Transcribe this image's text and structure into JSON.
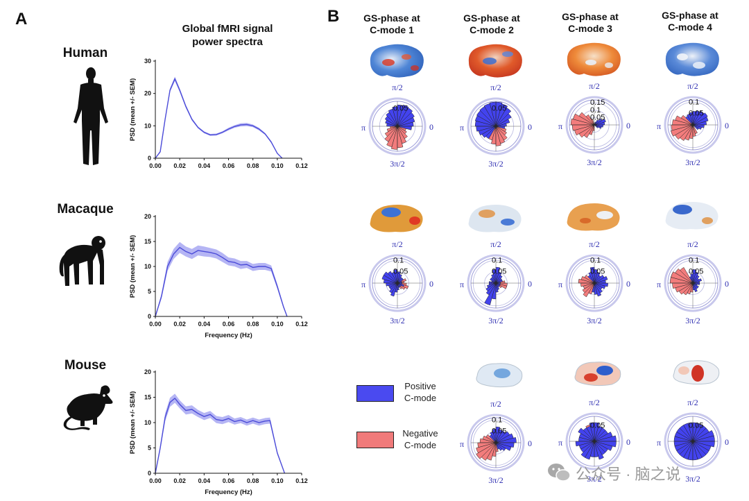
{
  "panel_a": {
    "letter": "A",
    "title": "Global fMRI  signal\npower spectra",
    "title_line1": "Global fMRI  signal",
    "title_line2": "power spectra",
    "species": [
      "Human",
      "Macaque",
      "Mouse"
    ]
  },
  "panel_b": {
    "letter": "B",
    "columns": [
      {
        "line1": "GS-phase at",
        "line2": "C-mode 1"
      },
      {
        "line1": "GS-phase at",
        "line2": "C-mode 2"
      },
      {
        "line1": "GS-phase at",
        "line2": "C-mode 3"
      },
      {
        "line1": "GS-phase at",
        "line2": "C-mode 4"
      }
    ],
    "angle_labels": {
      "top": "π/2",
      "left": "π",
      "right": "0",
      "bottom": "3π/2"
    },
    "legend": {
      "positive_line1": "Positive",
      "positive_line2": "C-mode",
      "negative_line1": "Negative",
      "negative_line2": "C-mode",
      "positive_color": "#4a4af0",
      "negative_color": "#f07a7a"
    }
  },
  "colors": {
    "line": "#4b4bd8",
    "band": "#9c9cf0",
    "pos": "#4343ee",
    "neg": "#f27c7c"
  },
  "chart_data": [
    {
      "type": "line",
      "name": "Human",
      "title": "Global fMRI  signal power spectra",
      "xlabel": "",
      "ylabel": "PSD (mean +/- SEM)",
      "xlim": [
        0,
        0.12
      ],
      "ylim": [
        0,
        30
      ],
      "xticks": [
        0,
        0.02,
        0.04,
        0.06,
        0.08,
        0.1,
        0.12
      ],
      "yticks": [
        0,
        10,
        20,
        30
      ],
      "x": [
        0,
        0.004,
        0.008,
        0.012,
        0.016,
        0.02,
        0.025,
        0.03,
        0.035,
        0.04,
        0.045,
        0.05,
        0.055,
        0.06,
        0.065,
        0.07,
        0.075,
        0.08,
        0.085,
        0.09,
        0.095,
        0.1,
        0.104
      ],
      "y": [
        0,
        2,
        12,
        21,
        24.5,
        21,
        16,
        12,
        9.5,
        8,
        7.2,
        7.3,
        8,
        9,
        9.8,
        10.3,
        10.4,
        10,
        9,
        7.5,
        5,
        1.5,
        0
      ],
      "sem": [
        0.2,
        0.3,
        0.5,
        0.6,
        0.7,
        0.6,
        0.5,
        0.4,
        0.3,
        0.3,
        0.3,
        0.3,
        0.3,
        0.4,
        0.4,
        0.5,
        0.5,
        0.4,
        0.4,
        0.3,
        0.3,
        0.2,
        0.1
      ]
    },
    {
      "type": "line",
      "name": "Macaque",
      "xlabel": "Frequency (Hz)",
      "ylabel": "PSD (mean +/- SEM)",
      "xlim": [
        0,
        0.12
      ],
      "ylim": [
        0,
        20
      ],
      "xticks": [
        0,
        0.02,
        0.04,
        0.06,
        0.08,
        0.1,
        0.12
      ],
      "yticks": [
        0,
        5,
        10,
        15,
        20
      ],
      "x": [
        0,
        0.005,
        0.01,
        0.015,
        0.02,
        0.025,
        0.03,
        0.035,
        0.04,
        0.045,
        0.05,
        0.055,
        0.06,
        0.065,
        0.07,
        0.075,
        0.08,
        0.085,
        0.09,
        0.095,
        0.1,
        0.105,
        0.108
      ],
      "y": [
        0,
        4,
        10,
        12.5,
        13.8,
        13,
        12.5,
        13.2,
        13,
        12.8,
        12.5,
        11.8,
        11,
        10.8,
        10.3,
        10.4,
        9.8,
        10,
        10,
        9.6,
        6,
        2,
        0
      ],
      "sem": [
        0.2,
        0.5,
        0.9,
        1.0,
        1.1,
        1.0,
        1.0,
        1.0,
        1.0,
        0.9,
        0.9,
        0.9,
        0.8,
        0.8,
        0.8,
        0.7,
        0.7,
        0.7,
        0.7,
        0.6,
        0.5,
        0.3,
        0.1
      ]
    },
    {
      "type": "line",
      "name": "Mouse",
      "xlabel": "Frequency (Hz)",
      "ylabel": "PSD (mean +/- SEM)",
      "xlim": [
        0,
        0.12
      ],
      "ylim": [
        0,
        20
      ],
      "xticks": [
        0,
        0.02,
        0.04,
        0.06,
        0.08,
        0.1,
        0.12
      ],
      "yticks": [
        0,
        5,
        10,
        15,
        20
      ],
      "x": [
        0,
        0.004,
        0.008,
        0.012,
        0.016,
        0.02,
        0.025,
        0.03,
        0.035,
        0.04,
        0.045,
        0.05,
        0.055,
        0.06,
        0.065,
        0.07,
        0.075,
        0.08,
        0.085,
        0.09,
        0.094,
        0.1,
        0.106
      ],
      "y": [
        0,
        5,
        11,
        14,
        14.8,
        13.6,
        12.4,
        12.6,
        11.8,
        11.2,
        11.6,
        10.6,
        10.4,
        10.8,
        10.2,
        10.5,
        10.0,
        10.4,
        10.0,
        10.3,
        10.4,
        4,
        0
      ],
      "sem": [
        0.2,
        0.5,
        0.8,
        0.9,
        0.9,
        0.8,
        0.8,
        0.8,
        0.7,
        0.7,
        0.7,
        0.7,
        0.7,
        0.7,
        0.6,
        0.6,
        0.6,
        0.6,
        0.6,
        0.6,
        0.6,
        0.3,
        0.1
      ]
    }
  ],
  "rose_plots": [
    {
      "id": "h1",
      "species": "Human",
      "col": 1,
      "rmax": 0.07,
      "rings": [
        0.05
      ],
      "ring_labels": [
        "0.05"
      ],
      "pos": [
        0.045,
        0.05,
        0.055,
        0.06,
        0.062,
        0.06,
        0.055,
        0.05,
        0.045,
        0.04,
        0.035,
        0.03,
        0,
        0,
        0,
        0,
        0,
        0,
        0,
        0,
        0,
        0,
        0,
        0.04
      ],
      "neg": [
        0,
        0,
        0,
        0,
        0,
        0,
        0,
        0,
        0,
        0,
        0,
        0,
        0.02,
        0.03,
        0.04,
        0.05,
        0.06,
        0.065,
        0.06,
        0.05,
        0.04,
        0.03,
        0.025,
        0
      ]
    },
    {
      "id": "h2",
      "species": "Human",
      "col": 2,
      "rmax": 0.07,
      "rings": [
        0.05
      ],
      "ring_labels": [
        "0.05"
      ],
      "pos": [
        0.03,
        0.04,
        0.05,
        0.06,
        0.065,
        0.068,
        0.068,
        0.066,
        0.064,
        0.062,
        0.06,
        0.058,
        0.055,
        0.05,
        0.045,
        0.04,
        0,
        0,
        0,
        0,
        0,
        0,
        0,
        0.025
      ],
      "neg": [
        0,
        0,
        0,
        0,
        0,
        0,
        0,
        0,
        0,
        0,
        0,
        0,
        0,
        0,
        0,
        0,
        0.04,
        0.05,
        0.055,
        0.05,
        0.045,
        0.035,
        0.03,
        0
      ]
    },
    {
      "id": "h3",
      "species": "Human",
      "col": 3,
      "rmax": 0.17,
      "rings": [
        0.05,
        0.1,
        0.15
      ],
      "ring_labels": [
        "0.05",
        "0.1",
        "0.15"
      ],
      "pos": [
        0.07,
        0.08,
        0.06,
        0.04,
        0.02,
        0,
        0,
        0,
        0,
        0,
        0,
        0,
        0,
        0,
        0,
        0,
        0,
        0,
        0,
        0,
        0,
        0.03,
        0.05,
        0.06
      ],
      "neg": [
        0,
        0,
        0,
        0,
        0,
        0,
        0,
        0.04,
        0.08,
        0.12,
        0.15,
        0.16,
        0.15,
        0.14,
        0.12,
        0.1,
        0.07,
        0.04,
        0,
        0,
        0,
        0,
        0,
        0
      ]
    },
    {
      "id": "h4",
      "species": "Human",
      "col": 4,
      "rmax": 0.11,
      "rings": [
        0.05,
        0.1
      ],
      "ring_labels": [
        "0.05",
        "0.1"
      ],
      "pos": [
        0.06,
        0.07,
        0.075,
        0.07,
        0.065,
        0.06,
        0.055,
        0.05,
        0.045,
        0,
        0,
        0,
        0,
        0,
        0,
        0,
        0,
        0,
        0,
        0,
        0,
        0.03,
        0.04,
        0.05
      ],
      "neg": [
        0,
        0,
        0,
        0,
        0,
        0,
        0,
        0,
        0,
        0.06,
        0.08,
        0.09,
        0.095,
        0.1,
        0.09,
        0.08,
        0.07,
        0.06,
        0.05,
        0.04,
        0,
        0,
        0,
        0
      ]
    },
    {
      "id": "m1",
      "species": "Macaque",
      "col": 1,
      "rmax": 0.11,
      "rings": [
        0.05,
        0.1
      ],
      "ring_labels": [
        "0.05",
        "0.1"
      ],
      "pos": [
        0.02,
        0.02,
        0.03,
        0.03,
        0.04,
        0.05,
        0.06,
        0.05,
        0.06,
        0.07,
        0.07,
        0.06,
        0.05,
        0.04,
        0.04,
        0.05,
        0.06,
        0.04,
        0.03,
        0.02,
        0.02,
        0.02,
        0.03,
        0.02
      ],
      "neg": [
        0.03,
        0.04,
        0.03,
        0.02,
        0,
        0,
        0,
        0,
        0,
        0,
        0,
        0,
        0,
        0,
        0,
        0,
        0,
        0,
        0,
        0.02,
        0.03,
        0.04,
        0.05,
        0.04
      ]
    },
    {
      "id": "m2",
      "species": "Macaque",
      "col": 2,
      "rmax": 0.11,
      "rings": [
        0.05,
        0.1
      ],
      "ring_labels": [
        "0.05",
        "0.1"
      ],
      "pos": [
        0.02,
        0.03,
        0.03,
        0.04,
        0.05,
        0.07,
        0.06,
        0.04,
        0.03,
        0.03,
        0.02,
        0.03,
        0.03,
        0.04,
        0.05,
        0.06,
        0.1,
        0.07,
        0.04,
        0.03,
        0.02,
        0.02,
        0.02,
        0.02
      ],
      "neg": [
        0.04,
        0.03,
        0.02,
        0,
        0,
        0,
        0,
        0,
        0,
        0,
        0,
        0,
        0,
        0,
        0,
        0,
        0,
        0,
        0,
        0,
        0.02,
        0.03,
        0.05,
        0.05
      ]
    },
    {
      "id": "m3",
      "species": "Macaque",
      "col": 3,
      "rmax": 0.11,
      "rings": [
        0.05,
        0.1
      ],
      "ring_labels": [
        "0.05",
        "0.1"
      ],
      "pos": [
        0.05,
        0.06,
        0.05,
        0.04,
        0.05,
        0.06,
        0.07,
        0.05,
        0.04,
        0,
        0,
        0,
        0,
        0,
        0,
        0,
        0,
        0.04,
        0.05,
        0.06,
        0.05,
        0.04,
        0.05,
        0.06
      ],
      "neg": [
        0,
        0,
        0,
        0,
        0,
        0,
        0,
        0,
        0,
        0.05,
        0.06,
        0.07,
        0.06,
        0.05,
        0.06,
        0.07,
        0.05,
        0,
        0,
        0,
        0,
        0,
        0,
        0
      ]
    },
    {
      "id": "m4",
      "species": "Macaque",
      "col": 4,
      "rmax": 0.11,
      "rings": [
        0.05,
        0.1
      ],
      "ring_labels": [
        "0.05",
        "0.1"
      ],
      "pos": [
        0.03,
        0.04,
        0.03,
        0.04,
        0.05,
        0.06,
        0.04,
        0.03,
        0,
        0,
        0,
        0,
        0,
        0,
        0,
        0,
        0,
        0,
        0.03,
        0.04,
        0.03,
        0.03,
        0.02,
        0.03
      ],
      "neg": [
        0,
        0,
        0,
        0,
        0,
        0,
        0,
        0,
        0.08,
        0.09,
        0.1,
        0.1,
        0.09,
        0.08,
        0.07,
        0.06,
        0.05,
        0.04,
        0,
        0,
        0,
        0,
        0,
        0
      ]
    },
    {
      "id": "r2",
      "species": "Mouse",
      "col": 2,
      "rmax": 0.11,
      "rings": [
        0.05,
        0.1
      ],
      "ring_labels": [
        "0.05",
        "0.1"
      ],
      "pos": [
        0.09,
        0.08,
        0.07,
        0.06,
        0.06,
        0.07,
        0.06,
        0.05,
        0.04,
        0,
        0,
        0,
        0,
        0,
        0,
        0,
        0,
        0,
        0,
        0.03,
        0.04,
        0.05,
        0.07,
        0.08
      ],
      "neg": [
        0,
        0,
        0,
        0,
        0,
        0,
        0,
        0,
        0,
        0.05,
        0.06,
        0.07,
        0.08,
        0.09,
        0.1,
        0.09,
        0.08,
        0.06,
        0.04,
        0,
        0,
        0,
        0,
        0
      ]
    },
    {
      "id": "r3",
      "species": "Mouse",
      "col": 3,
      "rmax": 0.08,
      "rings": [
        0.05
      ],
      "ring_labels": [
        "0.05"
      ],
      "pos": [
        0.07,
        0.06,
        0.05,
        0.05,
        0.05,
        0.06,
        0.06,
        0.05,
        0.05,
        0.06,
        0.05,
        0.05,
        0.06,
        0.05,
        0.05,
        0.06,
        0.06,
        0.05,
        0.05,
        0.06,
        0.05,
        0.05,
        0.06,
        0.07
      ],
      "neg": [
        0,
        0,
        0,
        0,
        0,
        0.055,
        0.06,
        0.055,
        0,
        0,
        0,
        0,
        0,
        0,
        0,
        0,
        0,
        0,
        0,
        0,
        0,
        0,
        0,
        0
      ]
    },
    {
      "id": "r4",
      "species": "Mouse",
      "col": 4,
      "rmax": 0.08,
      "rings": [
        0.05
      ],
      "ring_labels": [
        "0.05"
      ],
      "pos": [
        0.07,
        0.07,
        0.06,
        0.06,
        0.06,
        0.06,
        0.06,
        0.06,
        0.06,
        0.06,
        0.06,
        0.06,
        0.06,
        0.06,
        0.06,
        0.06,
        0.06,
        0.06,
        0.06,
        0.06,
        0.06,
        0.06,
        0.06,
        0.07
      ],
      "neg": [
        0,
        0,
        0,
        0,
        0,
        0,
        0,
        0,
        0,
        0,
        0,
        0,
        0,
        0,
        0,
        0,
        0.04,
        0.05,
        0.05,
        0.04,
        0,
        0,
        0,
        0
      ]
    }
  ],
  "watermark": {
    "icon": "wechat-icon",
    "text": "公众号 · 脑之说"
  }
}
